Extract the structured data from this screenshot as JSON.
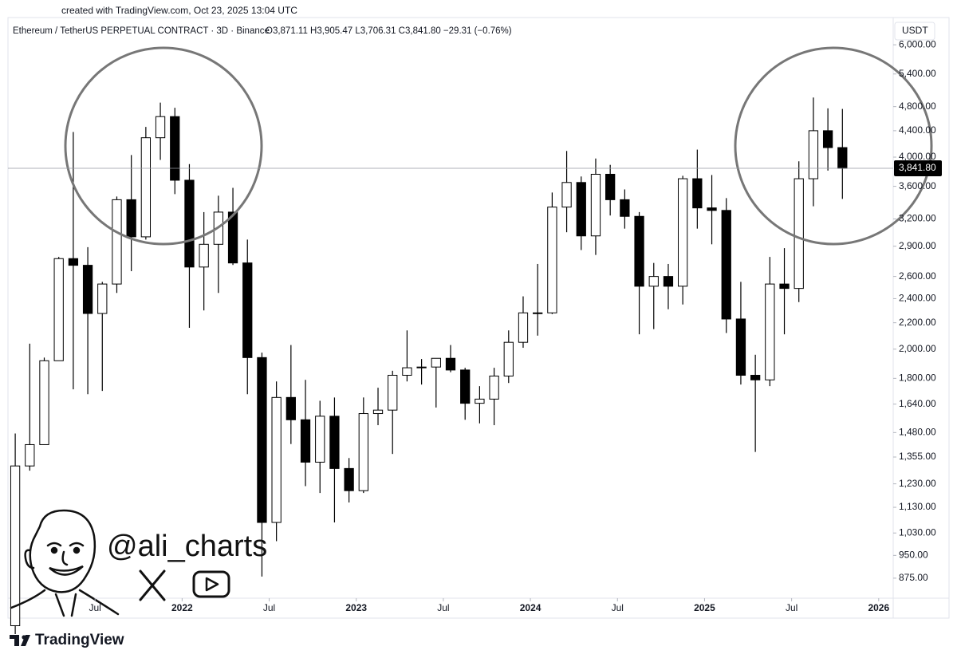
{
  "created_note": "created with TradingView.com, Oct 23, 2025 13:04 UTC",
  "chart_data": {
    "type": "candlestick",
    "title": "Ethereum / TetherUS PERPETUAL CONTRACT · 3D · Binance",
    "ohlc_text": "O3,871.11  H3,905.47  L3,706.31  C3,841.80  −29.31 (−0.76%)",
    "currency": "USDT",
    "x": [
      "2021-01",
      "2021-02",
      "2021-03",
      "2021-04",
      "2021-05",
      "2021-06",
      "2021-07",
      "2021-08",
      "2021-09",
      "2021-10",
      "2021-11",
      "2021-12",
      "2022-01",
      "2022-02",
      "2022-03",
      "2022-04",
      "2022-05",
      "2022-06",
      "2022-07",
      "2022-08",
      "2022-09",
      "2022-10",
      "2022-11",
      "2022-12",
      "2023-01",
      "2023-02",
      "2023-03",
      "2023-04",
      "2023-05",
      "2023-06",
      "2023-07",
      "2023-08",
      "2023-09",
      "2023-10",
      "2023-11",
      "2023-12",
      "2024-01",
      "2024-02",
      "2024-03",
      "2024-04",
      "2024-05",
      "2024-06",
      "2024-07",
      "2024-08",
      "2024-09",
      "2024-10",
      "2024-11",
      "2024-12",
      "2025-01",
      "2025-02",
      "2025-03",
      "2025-04",
      "2025-05",
      "2025-06",
      "2025-07",
      "2025-08",
      "2025-09",
      "2025-10"
    ],
    "open": [
      737,
      1312,
      1417,
      1918,
      2773,
      2707,
      2275,
      2530,
      3430,
      3000,
      4290,
      4630,
      3680,
      2690,
      2920,
      3280,
      2730,
      1940,
      1070,
      1680,
      1550,
      1330,
      1570,
      1300,
      1200,
      1585,
      1605,
      1820,
      1870,
      1875,
      1935,
      1855,
      1645,
      1670,
      1815,
      2050,
      2280,
      2280,
      3340,
      3650,
      3010,
      3760,
      3430,
      3230,
      2510,
      2600,
      2510,
      3700,
      3330,
      3300,
      2230,
      1820,
      1790,
      2530,
      2490,
      3700,
      4400,
      4140
    ],
    "high": [
      1475,
      2040,
      1940,
      2790,
      4380,
      2890,
      2550,
      3470,
      4030,
      4460,
      4870,
      4780,
      3900,
      3280,
      3480,
      3580,
      2970,
      1975,
      1780,
      2030,
      1790,
      1660,
      1680,
      1350,
      1680,
      1740,
      1850,
      2140,
      1930,
      1930,
      2030,
      1870,
      1750,
      1870,
      2140,
      2420,
      2720,
      3520,
      4090,
      3730,
      3980,
      3890,
      3560,
      3280,
      2730,
      2720,
      3740,
      4110,
      3750,
      3450,
      2550,
      1960,
      2790,
      2880,
      3940,
      4960,
      4770,
      4760
    ],
    "low": [
      715,
      1290,
      1440,
      1930,
      1730,
      1700,
      1720,
      2450,
      2650,
      2970,
      3960,
      3500,
      2160,
      2300,
      2450,
      2710,
      1700,
      880,
      1000,
      1420,
      1220,
      1190,
      1070,
      1150,
      1190,
      1520,
      1370,
      1780,
      1760,
      1620,
      1840,
      1550,
      1530,
      1520,
      1770,
      2010,
      2100,
      2270,
      3050,
      2860,
      2810,
      3240,
      3090,
      2110,
      2150,
      2310,
      2350,
      3090,
      2920,
      2120,
      1760,
      1380,
      1750,
      2110,
      2370,
      3350,
      3810,
      3440
    ],
    "close": [
      1312,
      1417,
      1918,
      2773,
      2707,
      2275,
      2530,
      3430,
      3000,
      4290,
      4630,
      3680,
      2690,
      2920,
      3280,
      2730,
      1940,
      1070,
      1680,
      1550,
      1330,
      1570,
      1300,
      1200,
      1585,
      1605,
      1820,
      1870,
      1875,
      1935,
      1855,
      1645,
      1670,
      1815,
      2050,
      2280,
      2280,
      3340,
      3650,
      3010,
      3760,
      3430,
      3230,
      2510,
      2600,
      2510,
      3700,
      3330,
      3300,
      2230,
      1820,
      1790,
      2530,
      2490,
      3700,
      4400,
      4140,
      3841.8
    ],
    "up_color": "#ffffff",
    "down_color": "#000000",
    "wick_color": "#000000",
    "log_scale": true,
    "grid": false,
    "ylim": [
      814,
      6620
    ],
    "yticks": [
      {
        "value": 875,
        "label": "875.00"
      },
      {
        "value": 950,
        "label": "950.00"
      },
      {
        "value": 1030,
        "label": "1,030.00"
      },
      {
        "value": 1130,
        "label": "1,130.00"
      },
      {
        "value": 1230,
        "label": "1,230.00"
      },
      {
        "value": 1355,
        "label": "1,355.00"
      },
      {
        "value": 1480,
        "label": "1,480.00"
      },
      {
        "value": 1640,
        "label": "1,640.00"
      },
      {
        "value": 1800,
        "label": "1,800.00"
      },
      {
        "value": 2000,
        "label": "2,000.00"
      },
      {
        "value": 2200,
        "label": "2,200.00"
      },
      {
        "value": 2400,
        "label": "2,400.00"
      },
      {
        "value": 2600,
        "label": "2,600.00"
      },
      {
        "value": 2900,
        "label": "2,900.00"
      },
      {
        "value": 3200,
        "label": "3,200.00"
      },
      {
        "value": 3600,
        "label": "3,600.00"
      },
      {
        "value": 4000,
        "label": "4,000.00"
      },
      {
        "value": 4400,
        "label": "4,400.00"
      },
      {
        "value": 4800,
        "label": "4,800.00"
      },
      {
        "value": 5400,
        "label": "5,400.00"
      },
      {
        "value": 6000,
        "label": "6,000.00"
      }
    ],
    "xlim": [
      "2021-01",
      "2026-02"
    ],
    "xticks": [
      {
        "value": "2021-07",
        "label": "Jul"
      },
      {
        "value": "2022-01",
        "label": "2022"
      },
      {
        "value": "2022-07",
        "label": "Jul"
      },
      {
        "value": "2023-01",
        "label": "2023"
      },
      {
        "value": "2023-07",
        "label": "Jul"
      },
      {
        "value": "2024-01",
        "label": "2024"
      },
      {
        "value": "2024-07",
        "label": "Jul"
      },
      {
        "value": "2025-01",
        "label": "2025"
      },
      {
        "value": "2025-07",
        "label": "Jul"
      },
      {
        "value": "2026-01",
        "label": "2026"
      }
    ],
    "last_price": {
      "value": 3841.8,
      "label": "3,841.80"
    }
  },
  "watermark": {
    "handle": "@ali_charts"
  },
  "footer": {
    "brand": "TradingView"
  }
}
